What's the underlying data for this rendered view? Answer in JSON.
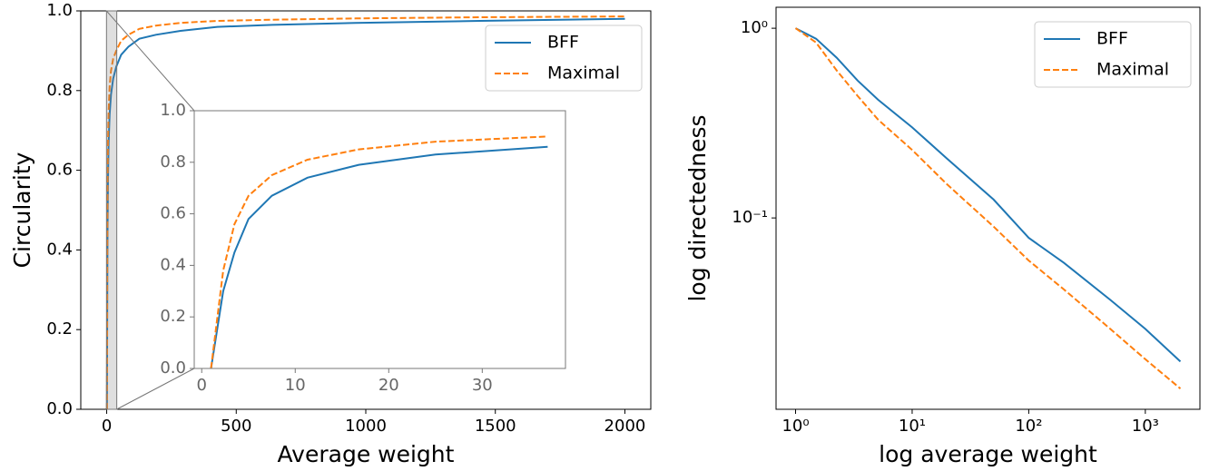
{
  "chart_data": [
    {
      "type": "line",
      "xlabel": "Average weight",
      "ylabel": "Circularity",
      "x": [
        1,
        2.3,
        3.5,
        5,
        7.5,
        11.3,
        16.8,
        25,
        37,
        56,
        84,
        126,
        190,
        285,
        427,
        641,
        961,
        1441,
        2000
      ],
      "series": [
        {
          "name": "BFF",
          "color": "#1f77b4",
          "linestyle": "solid",
          "values": [
            0,
            0.3,
            0.45,
            0.58,
            0.67,
            0.74,
            0.79,
            0.83,
            0.86,
            0.89,
            0.91,
            0.93,
            0.94,
            0.95,
            0.96,
            0.965,
            0.97,
            0.975,
            0.98
          ]
        },
        {
          "name": "Maximal",
          "color": "#ff7f0e",
          "linestyle": "dashed",
          "values": [
            0,
            0.38,
            0.56,
            0.67,
            0.75,
            0.81,
            0.85,
            0.88,
            0.9,
            0.925,
            0.94,
            0.955,
            0.963,
            0.97,
            0.975,
            0.978,
            0.981,
            0.984,
            0.986
          ]
        }
      ],
      "xlim": [
        -100,
        2100
      ],
      "ylim": [
        0,
        1
      ],
      "xticks": [
        0,
        500,
        1000,
        1500,
        2000
      ],
      "yticks": [
        {
          "value": 0,
          "label": "0.0"
        },
        0.2,
        0.4,
        0.6,
        0.8,
        {
          "value": 1,
          "label": "1.0"
        }
      ],
      "legend": "upper right"
    },
    {
      "type": "line",
      "x": [
        1,
        2.3,
        3.5,
        5,
        7.5,
        11.3,
        16.8,
        25,
        37
      ],
      "series": [
        {
          "color": "#1f77b4",
          "linestyle": "solid",
          "values": [
            0,
            0.3,
            0.45,
            0.58,
            0.67,
            0.74,
            0.79,
            0.83,
            0.86
          ]
        },
        {
          "color": "#ff7f0e",
          "linestyle": "dashed",
          "values": [
            0,
            0.38,
            0.56,
            0.67,
            0.75,
            0.81,
            0.85,
            0.88,
            0.9
          ]
        }
      ],
      "xlim": [
        -0.8,
        38.9
      ],
      "ylim": [
        0,
        1
      ],
      "xticks": [
        0,
        10,
        20,
        30
      ],
      "yticks": [
        {
          "value": 0,
          "label": "0.0"
        },
        0.2,
        0.4,
        0.6,
        0.8,
        {
          "value": 1,
          "label": "1.0"
        }
      ]
    },
    {
      "type": "line",
      "xlabel": "log average weight",
      "ylabel": "log directedness",
      "xscale": "log",
      "yscale": "log",
      "x": [
        1,
        1.5,
        2.25,
        3.4,
        5.1,
        10,
        20,
        50,
        100,
        200,
        500,
        1000,
        2000
      ],
      "series": [
        {
          "name": "BFF",
          "color": "#1f77b4",
          "linestyle": "solid",
          "values": [
            1.0,
            0.88,
            0.7,
            0.53,
            0.42,
            0.3,
            0.205,
            0.125,
            0.0785,
            0.058,
            0.037,
            0.026,
            0.0175
          ]
        },
        {
          "name": "Maximal",
          "color": "#ff7f0e",
          "linestyle": "dashed",
          "values": [
            1.0,
            0.84,
            0.6,
            0.44,
            0.33,
            0.228,
            0.15,
            0.09,
            0.0596,
            0.042,
            0.026,
            0.018,
            0.0126
          ]
        }
      ],
      "xlim": [
        0.68,
        2940
      ],
      "ylim": [
        0.0098,
        1.29
      ],
      "xticks": [
        {
          "value": 1,
          "label": "10⁰"
        },
        {
          "value": 10,
          "label": "10¹"
        },
        {
          "value": 100,
          "label": "10²"
        },
        {
          "value": 1000,
          "label": "10³"
        }
      ],
      "yticks": [
        {
          "value": 0.1,
          "label": "10⁻¹"
        },
        {
          "value": 1,
          "label": "10⁰"
        }
      ],
      "legend": "upper right"
    }
  ]
}
